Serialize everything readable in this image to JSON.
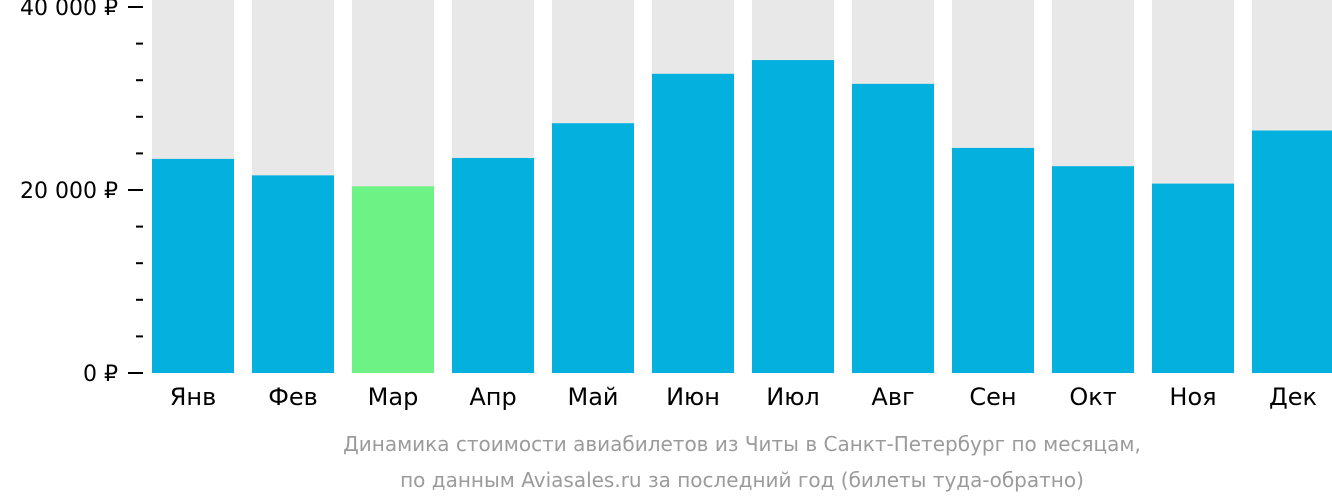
{
  "chart_data": {
    "type": "bar",
    "categories": [
      "Янв",
      "Фев",
      "Мар",
      "Апр",
      "Май",
      "Июн",
      "Июл",
      "Авг",
      "Сен",
      "Окт",
      "Ноя",
      "Дек"
    ],
    "values": [
      23400,
      21600,
      20400,
      23500,
      27300,
      32700,
      34200,
      31600,
      24600,
      22600,
      20700,
      26500
    ],
    "highlight_index": 2,
    "ylim": [
      0,
      40000
    ],
    "yticks": [
      {
        "value": 0,
        "label": "0 ₽"
      },
      {
        "value": 20000,
        "label": "20 000 ₽"
      },
      {
        "value": 40000,
        "label": "40 000 ₽"
      }
    ],
    "minor_tick_step": 4000,
    "caption_lines": [
      "Динамика стоимости авиабилетов из Читы в Санкт-Петербург по месяцам,",
      "по данным Aviasales.ru за последний год (билеты туда-обратно)"
    ],
    "colors": {
      "bar": "#03b0de",
      "highlight": "#6cf285",
      "background_bar": "#e8e8e8",
      "axis": "#000000",
      "caption": "#9b9b9b"
    },
    "grid": false,
    "legend": "none"
  }
}
